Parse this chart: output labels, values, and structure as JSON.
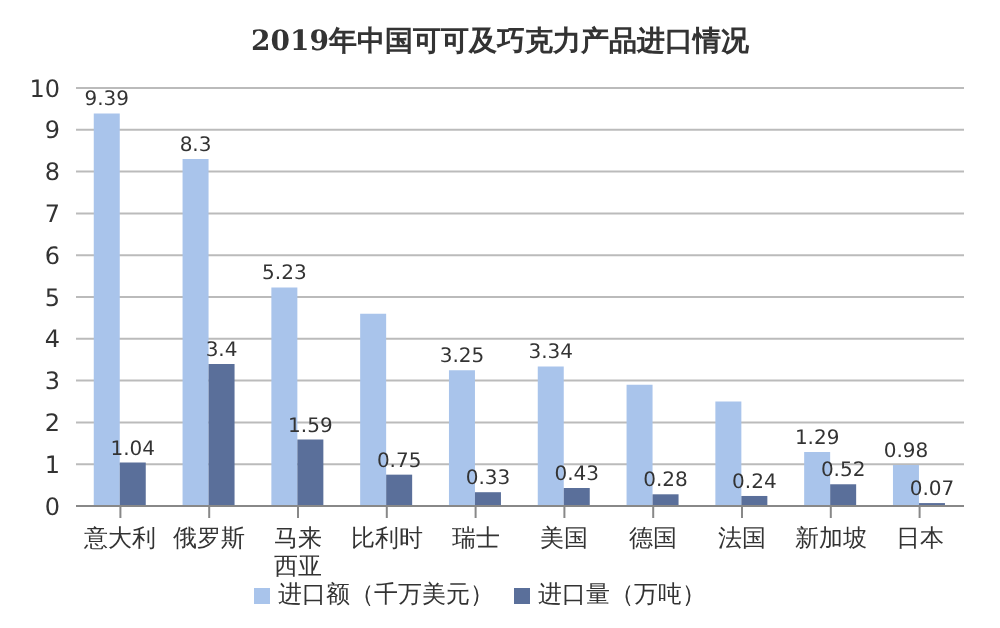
{
  "chart_data": {
    "type": "bar",
    "title": "2019年中国可可及巧克力产品进口情况",
    "categories": [
      "意大利",
      "俄罗斯",
      "马来西亚",
      "比利时",
      "瑞士",
      "美国",
      "德国",
      "法国",
      "新加坡",
      "日本"
    ],
    "series": [
      {
        "name": "进口额（千万美元）",
        "color": "#a9c4eb",
        "values": [
          9.39,
          8.3,
          5.23,
          4.6,
          3.25,
          3.34,
          2.9,
          2.5,
          1.29,
          0.98
        ],
        "value_labels": [
          "9.39",
          "8.3",
          "5.23",
          null,
          "3.25",
          "3.34",
          null,
          null,
          "1.29",
          "0.98"
        ]
      },
      {
        "name": "进口量（万吨）",
        "color": "#5a6f9a",
        "values": [
          1.04,
          3.4,
          1.59,
          0.75,
          0.33,
          0.43,
          0.28,
          0.24,
          0.52,
          0.07
        ],
        "value_labels": [
          "1.04",
          "3.4",
          "1.59",
          "0.75",
          "0.33",
          "0.43",
          "0.28",
          "0.24",
          "0.52",
          "0.07"
        ]
      }
    ],
    "ylim": [
      0,
      10
    ],
    "yticks": [
      0,
      1,
      2,
      3,
      4,
      5,
      6,
      7,
      8,
      9,
      10
    ],
    "grid": "y",
    "legend": "bottom"
  }
}
